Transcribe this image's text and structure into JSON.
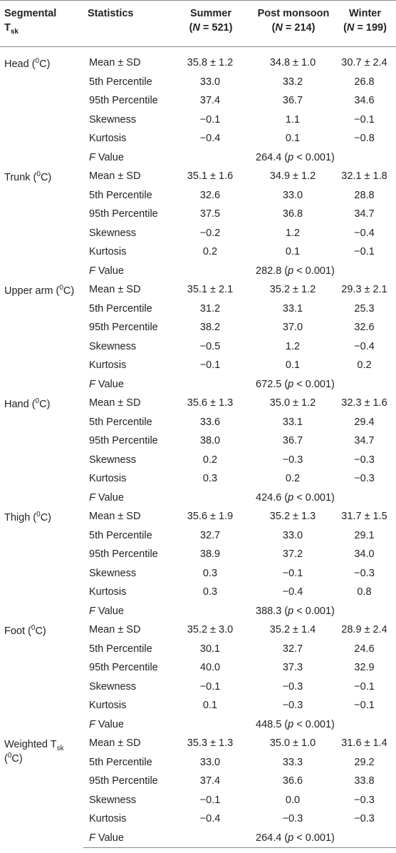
{
  "table": {
    "header": [
      [
        [
          {
            "text": "Segmental"
          }
        ],
        [
          {
            "text": "T"
          },
          {
            "sub": "sk"
          }
        ]
      ],
      [
        [
          {
            "text": "Statistics"
          }
        ]
      ],
      [
        [
          {
            "text": "Summer"
          }
        ],
        [
          {
            "text": "("
          },
          {
            "italic": "N"
          },
          {
            "text": " = 521)"
          }
        ]
      ],
      [
        [
          {
            "text": "Post monsoon"
          }
        ],
        [
          {
            "text": "("
          },
          {
            "italic": "N"
          },
          {
            "text": " = 214)"
          }
        ]
      ],
      [
        [
          {
            "text": "Winter"
          }
        ],
        [
          {
            "text": "("
          },
          {
            "italic": "N"
          },
          {
            "text": " = 199)"
          }
        ]
      ]
    ],
    "groups": [
      {
        "label": [
          {
            "text": "Head ("
          },
          {
            "sup": "0"
          },
          {
            "text": "C)"
          }
        ],
        "rows": [
          [
            "Mean ± SD",
            "35.8 ± 1.2",
            "34.8 ± 1.0",
            "30.7 ± 2.4"
          ],
          [
            "5th Percentile",
            "33.0",
            "33.2",
            "26.8"
          ],
          [
            "95th Percentile",
            "37.4",
            "36.7",
            "34.6"
          ],
          [
            "Skewness",
            "−0.1",
            "1.1",
            "−0.1"
          ],
          [
            "Kurtosis",
            "−0.4",
            "0.1",
            "−0.8"
          ],
          [
            [
              {
                "italic": "F"
              },
              {
                "text": " Value"
              }
            ],
            [
              {
                "text": "264.4 ("
              },
              {
                "italic": "p"
              },
              {
                "text": " < 0.001)"
              }
            ]
          ]
        ]
      },
      {
        "label": [
          {
            "text": "Trunk ("
          },
          {
            "sup": "0"
          },
          {
            "text": "C)"
          }
        ],
        "rows": [
          [
            "Mean ± SD",
            "35.1 ± 1.6",
            "34.9 ± 1.2",
            "32.1 ± 1.8"
          ],
          [
            "5th Percentile",
            "32.6",
            "33.0",
            "28.8"
          ],
          [
            "95th Percentile",
            "37.5",
            "36.8",
            "34.7"
          ],
          [
            "Skewness",
            "−0.2",
            "1.2",
            "−0.4"
          ],
          [
            "Kurtosis",
            "0.2",
            "0.1",
            "−0.1"
          ],
          [
            [
              {
                "italic": "F"
              },
              {
                "text": " Value"
              }
            ],
            [
              {
                "text": "282.8 ("
              },
              {
                "italic": "p"
              },
              {
                "text": " < 0.001)"
              }
            ]
          ]
        ]
      },
      {
        "label": [
          {
            "text": "Upper arm ("
          },
          {
            "sup": "0"
          },
          {
            "text": "C)"
          }
        ],
        "rows": [
          [
            "Mean ± SD",
            "35.1 ± 2.1",
            "35.2 ± 1.2",
            "29.3 ± 2.1"
          ],
          [
            "5th Percentile",
            "31.2",
            "33.1",
            "25.3"
          ],
          [
            "95th Percentile",
            "38.2",
            "37.0",
            "32.6"
          ],
          [
            "Skewness",
            "−0.5",
            "1.2",
            "−0.4"
          ],
          [
            "Kurtosis",
            "−0.1",
            "0.1",
            "0.2"
          ],
          [
            [
              {
                "italic": "F"
              },
              {
                "text": " Value"
              }
            ],
            [
              {
                "text": "672.5 ("
              },
              {
                "italic": "p"
              },
              {
                "text": " < 0.001)"
              }
            ]
          ]
        ]
      },
      {
        "label": [
          {
            "text": "Hand ("
          },
          {
            "sup": "0"
          },
          {
            "text": "C)"
          }
        ],
        "rows": [
          [
            "Mean ± SD",
            "35.6 ± 1.3",
            "35.0 ± 1.2",
            "32.3 ± 1.6"
          ],
          [
            "5th Percentile",
            "33.6",
            "33.1",
            "29.4"
          ],
          [
            "95th Percentile",
            "38.0",
            "36.7",
            "34.7"
          ],
          [
            "Skewness",
            "0.2",
            "−0.3",
            "−0.3"
          ],
          [
            "Kurtosis",
            "0.3",
            "0.2",
            "−0.3"
          ],
          [
            [
              {
                "italic": "F"
              },
              {
                "text": " Value"
              }
            ],
            [
              {
                "text": "424.6 ("
              },
              {
                "italic": "p"
              },
              {
                "text": " < 0.001)"
              }
            ]
          ]
        ]
      },
      {
        "label": [
          {
            "text": "Thigh ("
          },
          {
            "sup": "0"
          },
          {
            "text": "C)"
          }
        ],
        "rows": [
          [
            "Mean ± SD",
            "35.6 ± 1.9",
            "35.2 ± 1.3",
            "31.7 ± 1.5"
          ],
          [
            "5th Percentile",
            "32.7",
            "33.0",
            "29.1"
          ],
          [
            "95th Percentile",
            "38.9",
            "37.2",
            "34.0"
          ],
          [
            "Skewness",
            "0.3",
            "−0.1",
            "−0.3"
          ],
          [
            "Kurtosis",
            "0.3",
            "−0.4",
            "0.8"
          ],
          [
            [
              {
                "italic": "F"
              },
              {
                "text": " Value"
              }
            ],
            [
              {
                "text": "388.3 ("
              },
              {
                "italic": "p"
              },
              {
                "text": " < 0.001)"
              }
            ]
          ]
        ]
      },
      {
        "label": [
          {
            "text": "Foot ("
          },
          {
            "sup": "0"
          },
          {
            "text": "C)"
          }
        ],
        "rows": [
          [
            "Mean ± SD",
            "35.2 ± 3.0",
            "35.2 ± 1.4",
            "28.9 ± 2.4"
          ],
          [
            "5th Percentile",
            "30.1",
            "32.7",
            "24.6"
          ],
          [
            "95th Percentile",
            "40.0",
            "37.3",
            "32.9"
          ],
          [
            "Skewness",
            "−0.1",
            "−0.3",
            "−0.1"
          ],
          [
            "Kurtosis",
            "0.1",
            "−0.3",
            "−0.1"
          ],
          [
            [
              {
                "italic": "F"
              },
              {
                "text": " Value"
              }
            ],
            [
              {
                "text": "448.5 ("
              },
              {
                "italic": "p"
              },
              {
                "text": " < 0.001)"
              }
            ]
          ]
        ]
      },
      {
        "label": [
          {
            "text": "Weighted T"
          },
          {
            "sub": "sk"
          },
          {
            "text": " ("
          },
          {
            "sup": "0"
          },
          {
            "text": "C)"
          }
        ],
        "rows": [
          [
            "Mean ± SD",
            "35.3 ± 1.3",
            "35.0 ± 1.0",
            "31.6 ± 1.4"
          ],
          [
            "5th Percentile",
            "33.0",
            "33.3",
            "29.2"
          ],
          [
            "95th Percentile",
            "37.4",
            "36.6",
            "33.8"
          ],
          [
            "Skewness",
            "−0.1",
            "0.0",
            "−0.3"
          ],
          [
            "Kurtosis",
            "−0.4",
            "−0.3",
            "−0.3"
          ],
          [
            [
              {
                "italic": "F"
              },
              {
                "text": " Value"
              }
            ],
            [
              {
                "text": "264.4 ("
              },
              {
                "italic": "p"
              },
              {
                "text": " < 0.001)"
              }
            ]
          ]
        ]
      }
    ]
  }
}
